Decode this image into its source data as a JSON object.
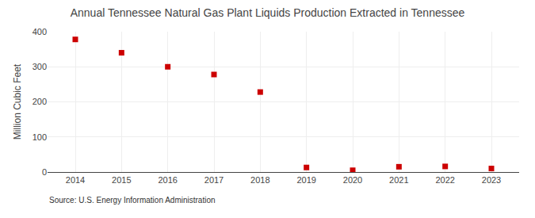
{
  "chart_data": {
    "type": "scatter",
    "title": "Annual Tennessee Natural Gas Plant Liquids Production Extracted in Tennessee",
    "ylabel": "Million Cubic Feet",
    "annotations": [
      "Source: U.S. Energy Information Administration"
    ],
    "x": [
      2014,
      2015,
      2016,
      2017,
      2018,
      2019,
      2020,
      2021,
      2022,
      2023
    ],
    "values": [
      378,
      340,
      300,
      278,
      228,
      13,
      5,
      15,
      16,
      10
    ],
    "xlim": [
      2013.4,
      2023.6
    ],
    "xticks": [
      2014,
      2015,
      2016,
      2017,
      2018,
      2019,
      2020,
      2021,
      2022,
      2023
    ],
    "ylim": [
      0,
      400
    ],
    "yticks": [
      0,
      100,
      200,
      300,
      400
    ],
    "grid": true,
    "color": "#cc0000",
    "marker": "square"
  }
}
